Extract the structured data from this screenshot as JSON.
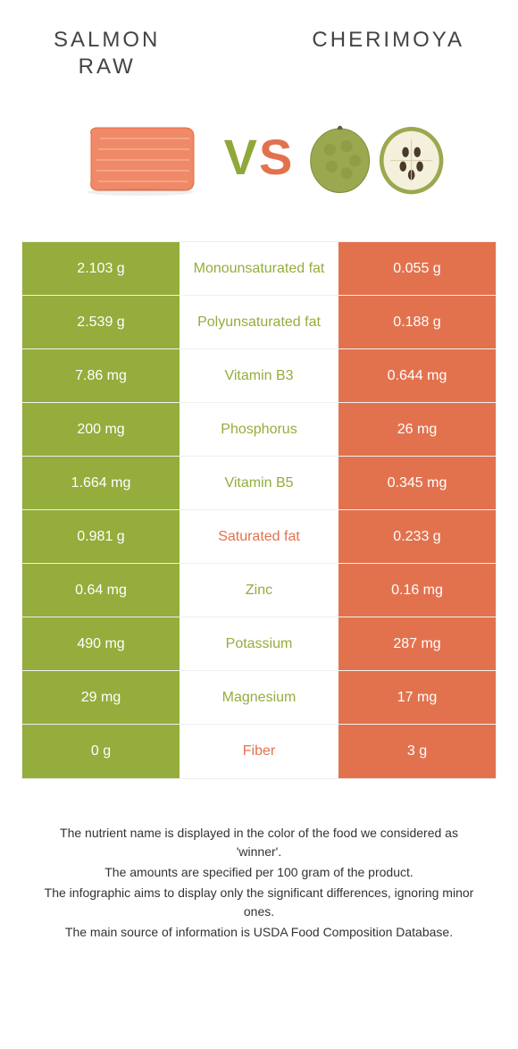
{
  "colors": {
    "left": "#94ad3c",
    "right": "#e2724e",
    "background": "#ffffff",
    "rowBorder": "#f0f0f0",
    "titleText": "#444444",
    "footerText": "#333333"
  },
  "header": {
    "leftTitle": "SALMON\nRAW",
    "rightTitle": "CHERIMOYA",
    "vs": "VS"
  },
  "table": {
    "rows": [
      {
        "left": "2.103 g",
        "label": "Monounsaturated fat",
        "right": "0.055 g",
        "winner": "left"
      },
      {
        "left": "2.539 g",
        "label": "Polyunsaturated fat",
        "right": "0.188 g",
        "winner": "left"
      },
      {
        "left": "7.86 mg",
        "label": "Vitamin B3",
        "right": "0.644 mg",
        "winner": "left"
      },
      {
        "left": "200 mg",
        "label": "Phosphorus",
        "right": "26 mg",
        "winner": "left"
      },
      {
        "left": "1.664 mg",
        "label": "Vitamin B5",
        "right": "0.345 mg",
        "winner": "left"
      },
      {
        "left": "0.981 g",
        "label": "Saturated fat",
        "right": "0.233 g",
        "winner": "right"
      },
      {
        "left": "0.64 mg",
        "label": "Zinc",
        "right": "0.16 mg",
        "winner": "left"
      },
      {
        "left": "490 mg",
        "label": "Potassium",
        "right": "287 mg",
        "winner": "left"
      },
      {
        "left": "29 mg",
        "label": "Magnesium",
        "right": "17 mg",
        "winner": "left"
      },
      {
        "left": "0 g",
        "label": "Fiber",
        "right": "3 g",
        "winner": "right"
      }
    ]
  },
  "footer": {
    "line1": "The nutrient name is displayed in the color of the food we considered as 'winner'.",
    "line2": "The amounts are specified per 100 gram of the product.",
    "line3": "The infographic aims to display only the significant differences, ignoring minor ones.",
    "line4": "The main source of information is USDA Food Composition Database."
  },
  "typography": {
    "titleFontSize": 24,
    "titleLetterSpacing": 3,
    "vsFontSize": 56,
    "cellFontSize": 16,
    "labelFontSize": 16,
    "footerFontSize": 14
  }
}
